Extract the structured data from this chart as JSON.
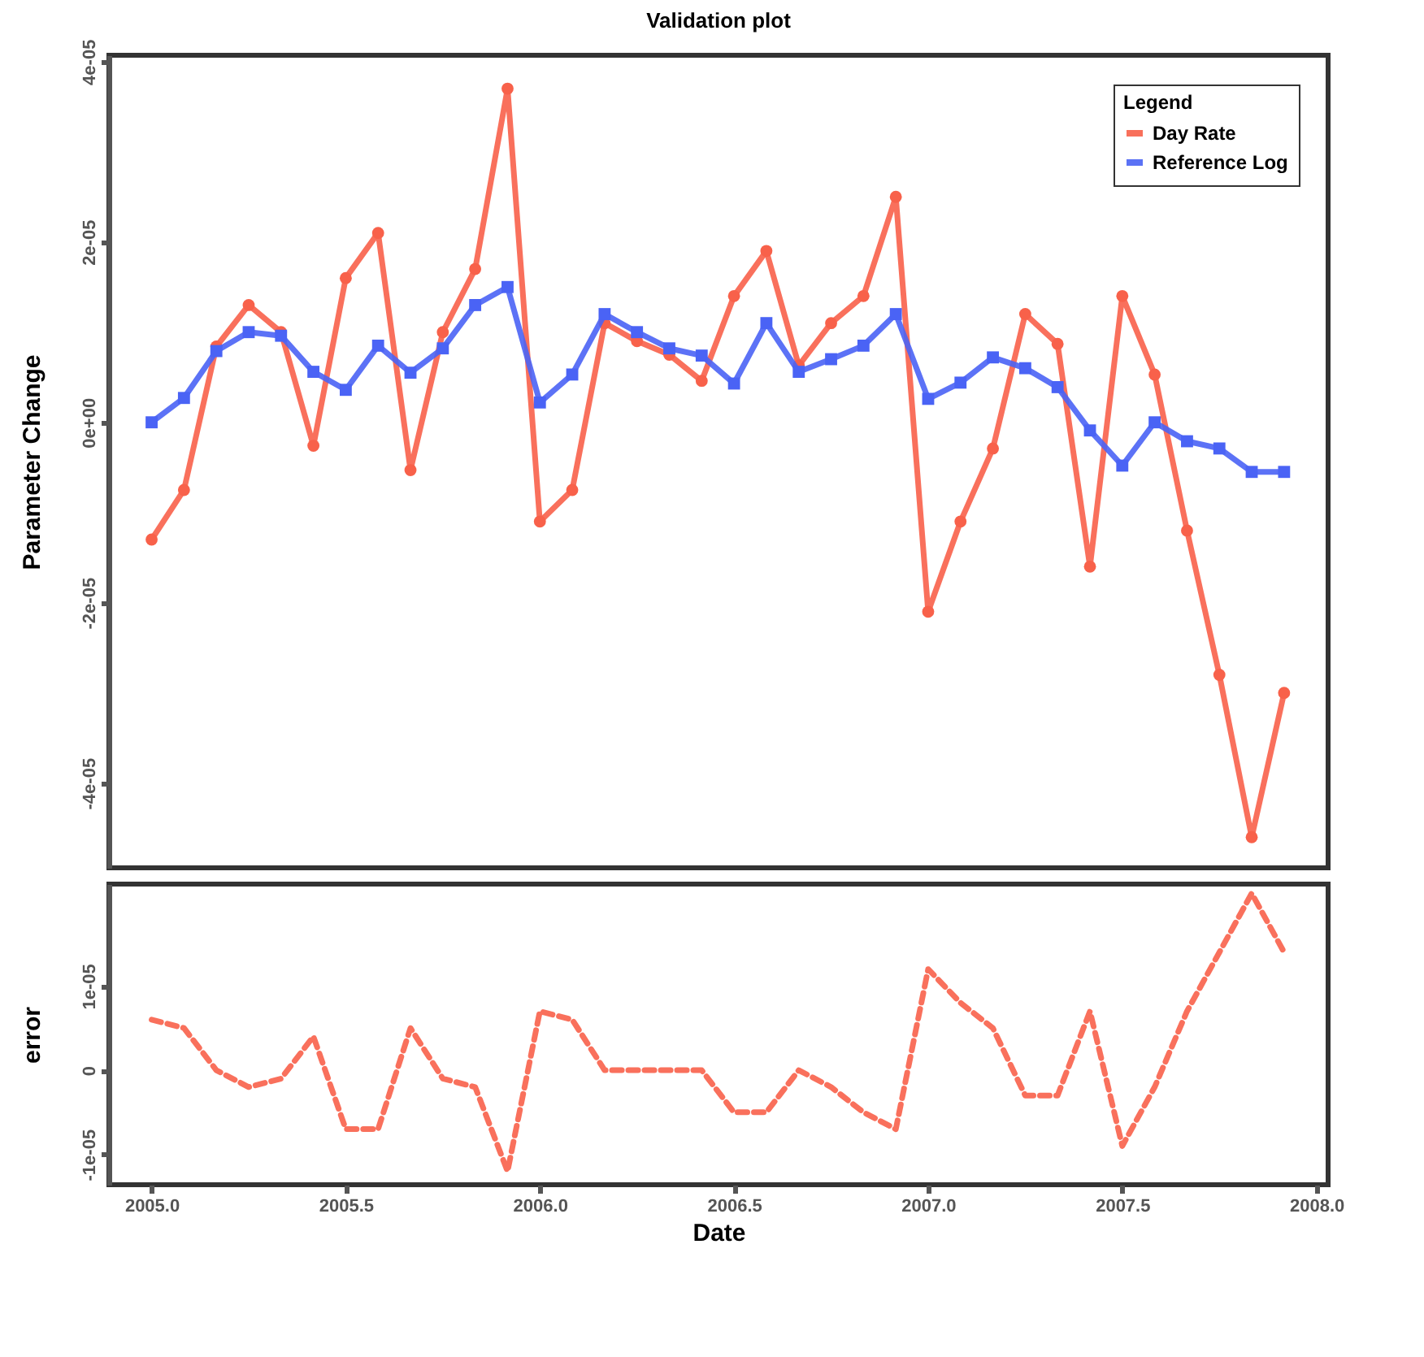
{
  "chart_data": [
    {
      "type": "line",
      "title": "Validation plot",
      "ylabel": "Parameter Change",
      "legend_title": "Legend",
      "legend": "top right",
      "grid": false,
      "tick_labels": "y",
      "x": [
        2005.0,
        2005.0833,
        2005.1667,
        2005.25,
        2005.3333,
        2005.4167,
        2005.5,
        2005.5833,
        2005.6667,
        2005.75,
        2005.8333,
        2005.9167,
        2006.0,
        2006.0833,
        2006.1667,
        2006.25,
        2006.3333,
        2006.4167,
        2006.5,
        2006.5833,
        2006.6667,
        2006.75,
        2006.8333,
        2006.9167,
        2007.0,
        2007.0833,
        2007.1667,
        2007.25,
        2007.3333,
        2007.4167,
        2007.5,
        2007.5833,
        2007.6667,
        2007.75,
        2007.8333,
        2007.9167
      ],
      "xlim": [
        2004.89,
        2008.03
      ],
      "ylim": [
        -4.94e-05,
        4.07e-05
      ],
      "yticks": [
        {
          "value": -4e-05,
          "label": "-4e-05"
        },
        {
          "value": -2e-05,
          "label": "-2e-05"
        },
        {
          "value": 0,
          "label": "0e+00"
        },
        {
          "value": 2e-05,
          "label": "2e-05"
        },
        {
          "value": 4e-05,
          "label": "4e-05"
        }
      ],
      "series": [
        {
          "name": "Day Rate",
          "color": "#f8614a",
          "marker": "circle",
          "line_style": "solid",
          "values": [
            -1.3e-05,
            -7.5e-06,
            8.4e-06,
            1.3e-05,
            1e-05,
            -2.6e-06,
            1.6e-05,
            2.1e-05,
            -5.3e-06,
            1e-05,
            1.7e-05,
            3.7e-05,
            -1.1e-05,
            -7.5e-06,
            1.1e-05,
            9e-06,
            7.5e-06,
            4.6e-06,
            1.4e-05,
            1.9e-05,
            6.3e-06,
            1.1e-05,
            1.4e-05,
            2.5e-05,
            -2.1e-05,
            -1.1e-05,
            -2.9e-06,
            1.2e-05,
            8.7e-06,
            -1.6e-05,
            1.4e-05,
            5.3e-06,
            -1.2e-05,
            -2.8e-05,
            -4.6e-05,
            -3e-05
          ]
        },
        {
          "name": "Reference Log",
          "color": "#4a63f5",
          "marker": "square",
          "line_style": "solid",
          "values": [
            0,
            2.7e-06,
            7.9e-06,
            1e-05,
            9.6e-06,
            5.6e-06,
            3.6e-06,
            8.5e-06,
            5.5e-06,
            8.2e-06,
            1.3e-05,
            1.5e-05,
            2.2e-06,
            5.3e-06,
            1.2e-05,
            1e-05,
            8.2e-06,
            7.4e-06,
            4.3e-06,
            1.1e-05,
            5.6e-06,
            7e-06,
            8.5e-06,
            1.2e-05,
            2.6e-06,
            4.4e-06,
            7.2e-06,
            6e-06,
            3.9e-06,
            -9e-07,
            -4.8e-06,
            0,
            -2.1e-06,
            -2.9e-06,
            -5.5e-06,
            -5.5e-06
          ]
        }
      ]
    },
    {
      "type": "line",
      "xlabel": "Date",
      "ylabel": "error",
      "grid": false,
      "x": [
        2005.0,
        2005.0833,
        2005.1667,
        2005.25,
        2005.3333,
        2005.4167,
        2005.5,
        2005.5833,
        2005.6667,
        2005.75,
        2005.8333,
        2005.9167,
        2006.0,
        2006.0833,
        2006.1667,
        2006.25,
        2006.3333,
        2006.4167,
        2006.5,
        2006.5833,
        2006.6667,
        2006.75,
        2006.8333,
        2006.9167,
        2007.0,
        2007.0833,
        2007.1667,
        2007.25,
        2007.3333,
        2007.4167,
        2007.5,
        2007.5833,
        2007.6667,
        2007.75,
        2007.8333,
        2007.9167
      ],
      "xlim": [
        2004.89,
        2008.03
      ],
      "xticks": [
        {
          "value": 2005.0,
          "label": "2005.0"
        },
        {
          "value": 2005.5,
          "label": "2005.5"
        },
        {
          "value": 2006.0,
          "label": "2006.0"
        },
        {
          "value": 2006.5,
          "label": "2006.5"
        },
        {
          "value": 2007.0,
          "label": "2007.0"
        },
        {
          "value": 2007.5,
          "label": "2007.5"
        },
        {
          "value": 2008.0,
          "label": "2008.0"
        }
      ],
      "ylim": [
        -1.36e-05,
        2.21e-05
      ],
      "yticks": [
        {
          "value": -1e-05,
          "label": "-1e-05"
        },
        {
          "value": 0,
          "label": "0"
        },
        {
          "value": 1e-05,
          "label": "1e-05"
        }
      ],
      "series": [
        {
          "color": "#f8614a",
          "marker": "none",
          "line_style": "dashed",
          "values": [
            6e-06,
            5e-06,
            0,
            -2e-06,
            -1e-06,
            4e-06,
            -7e-06,
            -7e-06,
            5e-06,
            -1e-06,
            -2e-06,
            -1.2e-05,
            7e-06,
            6e-06,
            0,
            0,
            0,
            0,
            -5e-06,
            -5e-06,
            0,
            -2e-06,
            -5e-06,
            -7e-06,
            1.2e-05,
            8e-06,
            5e-06,
            -3e-06,
            -3e-06,
            7e-06,
            -9e-06,
            -2e-06,
            7e-06,
            1.4e-05,
            2.1e-05,
            1.4e-05
          ]
        }
      ]
    }
  ]
}
